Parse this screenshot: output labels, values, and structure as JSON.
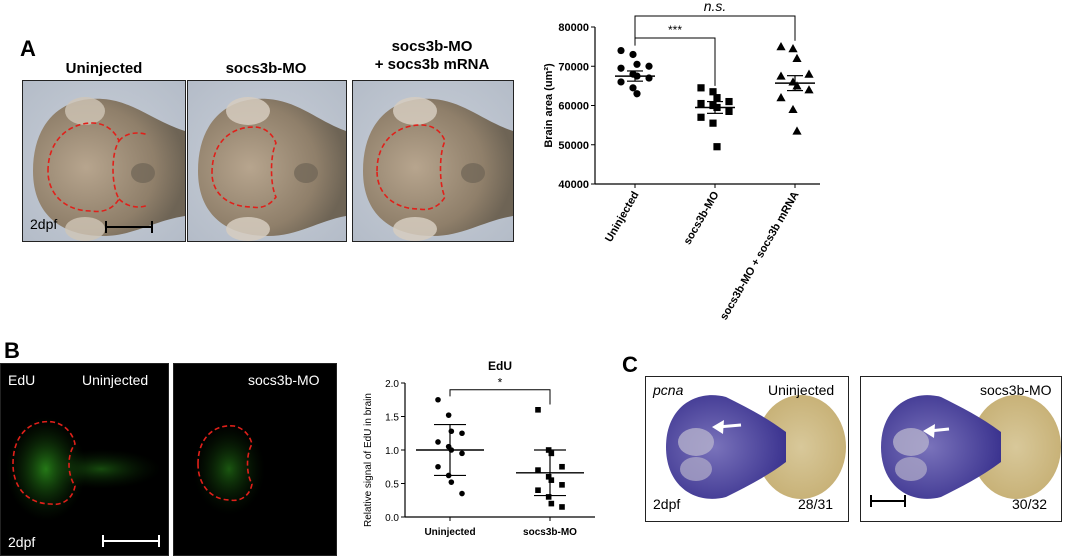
{
  "panels": {
    "A": {
      "letter": "A",
      "images": [
        {
          "title": "Uninjected"
        },
        {
          "title": "socs3b-MO"
        },
        {
          "title": "socs3b-MO\n+ socs3b mRNA"
        }
      ],
      "stage_label": "2dpf"
    },
    "B": {
      "letter": "B",
      "images": [
        {
          "label_left": "EdU",
          "label_right": "Uninjected",
          "stage_label": "2dpf"
        },
        {
          "label_right": "socs3b-MO"
        }
      ]
    },
    "C": {
      "letter": "C",
      "images": [
        {
          "gene": "pcna",
          "label_right": "Uninjected",
          "stage_label": "2dpf",
          "count": "28/31"
        },
        {
          "label_right": "socs3b-MO",
          "count": "30/32"
        }
      ]
    }
  },
  "chart_data": [
    {
      "type": "scatter",
      "panel": "A",
      "title": "",
      "ylabel": "Brain area (um²)",
      "ylim": [
        40000,
        80000
      ],
      "yticks": [
        "40000",
        "50000",
        "60000",
        "70000",
        "80000"
      ],
      "categories": [
        "Uninjected",
        "socs3b-MO",
        "socs3b-MO + socs3b mRNA"
      ],
      "series": [
        {
          "marker": "circle",
          "mean": 67500,
          "sem_low": 66200,
          "sem_high": 68800,
          "values": [
            74000,
            73000,
            70500,
            70000,
            69500,
            68000,
            67500,
            67000,
            66000,
            64500,
            63000
          ]
        },
        {
          "marker": "square",
          "mean": 59500,
          "sem_low": 58000,
          "sem_high": 61000,
          "values": [
            64500,
            63500,
            62000,
            61000,
            60500,
            60000,
            59500,
            58500,
            57000,
            55500,
            49500
          ]
        },
        {
          "marker": "triangle",
          "mean": 65700,
          "sem_low": 63800,
          "sem_high": 67600,
          "values": [
            75000,
            74500,
            72000,
            68000,
            67500,
            66000,
            65000,
            64000,
            62000,
            59000,
            53500
          ]
        }
      ],
      "significance": [
        {
          "from": 0,
          "to": 1,
          "label": "***"
        },
        {
          "from": 0,
          "to": 2,
          "label": "n.s."
        }
      ]
    },
    {
      "type": "scatter",
      "panel": "B",
      "title": "EdU",
      "ylabel": "Relative signal of  EdU in brain",
      "ylim": [
        0,
        2
      ],
      "yticks": [
        "0.0",
        "0.5",
        "1.0",
        "1.5",
        "2.0"
      ],
      "categories": [
        "Uninjected",
        "socs3b-MO"
      ],
      "series": [
        {
          "marker": "circle",
          "mean": 1.0,
          "sd_low": 0.62,
          "sd_high": 1.38,
          "values": [
            1.75,
            1.52,
            1.28,
            1.25,
            1.12,
            1.05,
            1.0,
            0.95,
            0.75,
            0.62,
            0.52,
            0.35
          ]
        },
        {
          "marker": "square",
          "mean": 0.66,
          "sd_low": 0.32,
          "sd_high": 1.0,
          "values": [
            1.6,
            1.0,
            0.95,
            0.75,
            0.7,
            0.6,
            0.55,
            0.48,
            0.4,
            0.3,
            0.2,
            0.15
          ]
        }
      ],
      "significance": [
        {
          "from": 0,
          "to": 1,
          "label": "*"
        }
      ]
    }
  ]
}
